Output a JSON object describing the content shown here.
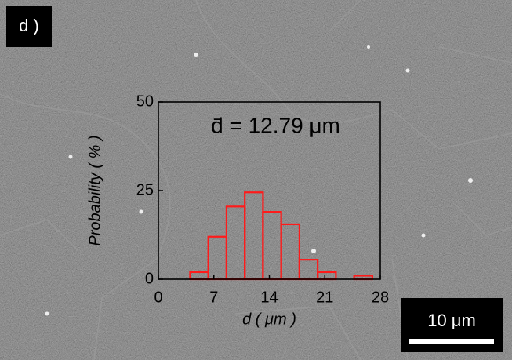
{
  "chart_data": {
    "type": "histogram",
    "panel_label": "d )",
    "annotation": "d̄ = 12.79 μm",
    "xlabel": "d ( μm )",
    "ylabel": "Probability ( % )",
    "bins": [
      4,
      6.3,
      8.6,
      10.9,
      13.2,
      15.5,
      17.8,
      20.1,
      22.4,
      24.7,
      27.0
    ],
    "values": [
      2,
      12,
      20.5,
      24.5,
      19,
      15.5,
      5.5,
      2,
      0,
      1
    ],
    "color": "#ff1a1a",
    "xlim": [
      0,
      28
    ],
    "ylim": [
      0,
      50
    ],
    "xticks": [
      0,
      7,
      14,
      21,
      28
    ],
    "yticks": [
      0,
      25,
      50
    ],
    "scale_bar": "10 μm"
  }
}
